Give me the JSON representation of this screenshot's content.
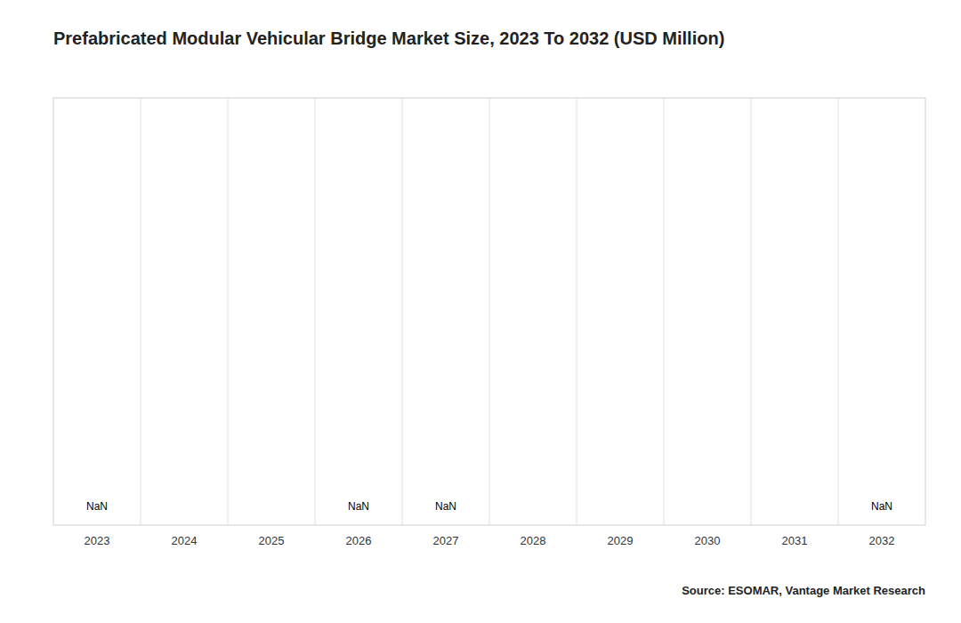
{
  "chart_data": {
    "type": "bar",
    "title": "Prefabricated Modular Vehicular Bridge Market Size, 2023 To 2032 (USD Million)",
    "source": "Source: ESOMAR, Vantage Market Research",
    "x": [
      2023,
      2024,
      2025,
      2026,
      2027,
      2028,
      2029,
      2030,
      2031,
      2032
    ],
    "values": [
      null,
      null,
      null,
      null,
      null,
      null,
      null,
      null,
      null,
      null
    ],
    "xlim": [
      2022.5,
      2032.5
    ],
    "xticks": [
      2023,
      2024,
      2025,
      2026,
      2027,
      2028,
      2029,
      2030,
      2031,
      2032
    ],
    "ylim": [
      0,
      100
    ],
    "yticks": [],
    "tick_labels": "x",
    "grid": false,
    "annotations": [
      {
        "text": "NaN",
        "x": 2023,
        "y": 3
      },
      {
        "text": "NaN",
        "x": 2026,
        "y": 3
      },
      {
        "text": "NaN",
        "x": 2027,
        "y": 3
      },
      {
        "text": "NaN",
        "x": 2032,
        "y": 3
      }
    ]
  }
}
